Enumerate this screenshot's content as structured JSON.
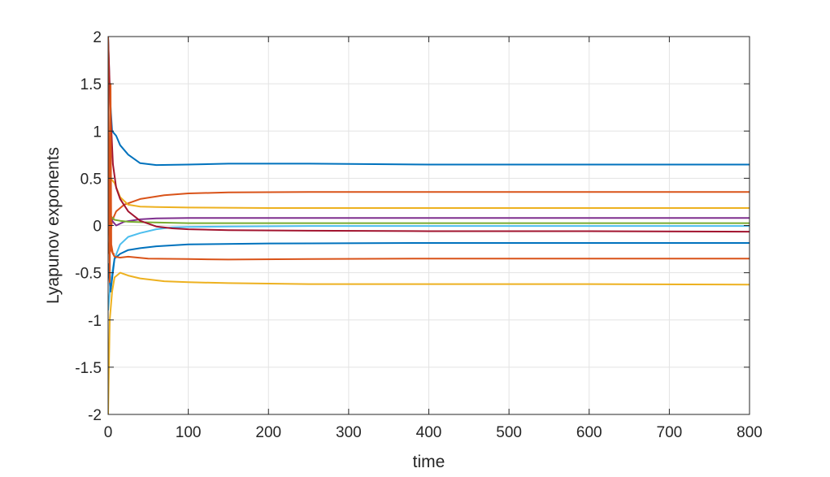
{
  "chart_data": {
    "type": "line",
    "title": "",
    "xlabel": "time",
    "ylabel": "Lyapunov exponents",
    "xlim": [
      0,
      800
    ],
    "ylim": [
      -2,
      2
    ],
    "grid": true,
    "legend": "none",
    "x_ticks": [
      0,
      100,
      200,
      300,
      400,
      500,
      600,
      700,
      800
    ],
    "y_ticks": [
      2,
      1.5,
      1,
      0.5,
      0,
      -0.5,
      -1,
      -1.5,
      -2
    ],
    "x_tick_labels": [
      "0",
      "100",
      "200",
      "300",
      "400",
      "500",
      "600",
      "700",
      "800"
    ],
    "y_tick_labels": [
      "2",
      "1.5",
      "1",
      "0.5",
      "0",
      "-0.5",
      "-1",
      "-1.5",
      "-2"
    ],
    "series": [
      {
        "color": "#0072BD",
        "x": [
          0,
          2,
          5,
          10,
          15,
          25,
          40,
          60,
          100,
          150,
          250,
          400,
          600,
          800
        ],
        "y": [
          2,
          1.4,
          1.0,
          0.95,
          0.85,
          0.75,
          0.66,
          0.64,
          0.645,
          0.655,
          0.655,
          0.645,
          0.645,
          0.645
        ]
      },
      {
        "color": "#D95319",
        "x": [
          0,
          5,
          10,
          20,
          40,
          70,
          100,
          150,
          250,
          400,
          600,
          800
        ],
        "y": [
          -0.3,
          0.05,
          0.15,
          0.22,
          0.28,
          0.32,
          0.34,
          0.35,
          0.355,
          0.355,
          0.355,
          0.355
        ]
      },
      {
        "color": "#EDB120",
        "x": [
          0,
          3,
          8,
          15,
          25,
          40,
          60,
          100,
          200,
          400,
          600,
          800
        ],
        "y": [
          0.2,
          0.5,
          0.45,
          0.3,
          0.22,
          0.2,
          0.195,
          0.19,
          0.185,
          0.185,
          0.185,
          0.185
        ]
      },
      {
        "color": "#7E2F8E",
        "x": [
          0,
          5,
          10,
          20,
          40,
          60,
          100,
          200,
          400,
          600,
          800
        ],
        "y": [
          0.2,
          0.05,
          0.0,
          0.04,
          0.065,
          0.075,
          0.08,
          0.08,
          0.08,
          0.08,
          0.08
        ]
      },
      {
        "color": "#77AC30",
        "x": [
          0,
          3,
          8,
          15,
          25,
          40,
          70,
          100,
          200,
          400,
          600,
          800
        ],
        "y": [
          -0.1,
          0.1,
          0.06,
          0.05,
          0.04,
          0.035,
          0.03,
          0.025,
          0.025,
          0.025,
          0.025,
          0.025
        ]
      },
      {
        "color": "#4DBEEE",
        "x": [
          0,
          3,
          8,
          15,
          25,
          40,
          60,
          80,
          100,
          150,
          250,
          400,
          600,
          800
        ],
        "y": [
          -0.9,
          -0.6,
          -0.35,
          -0.2,
          -0.12,
          -0.08,
          -0.04,
          -0.02,
          -0.015,
          -0.01,
          -0.005,
          -0.005,
          -0.005,
          -0.005
        ]
      },
      {
        "color": "#A2142F",
        "x": [
          0,
          3,
          6,
          10,
          15,
          25,
          40,
          60,
          80,
          100,
          150,
          250,
          400,
          600,
          800
        ],
        "y": [
          2,
          1.2,
          0.65,
          0.4,
          0.28,
          0.15,
          0.05,
          -0.01,
          -0.03,
          -0.04,
          -0.05,
          -0.055,
          -0.06,
          -0.06,
          -0.065
        ]
      },
      {
        "color": "#0072BD",
        "x": [
          0,
          3,
          8,
          15,
          25,
          40,
          60,
          100,
          200,
          400,
          600,
          800
        ],
        "y": [
          -0.4,
          -0.7,
          -0.35,
          -0.3,
          -0.26,
          -0.24,
          -0.22,
          -0.2,
          -0.19,
          -0.185,
          -0.185,
          -0.185
        ]
      },
      {
        "color": "#D95319",
        "x": [
          0,
          3,
          8,
          15,
          25,
          50,
          100,
          150,
          250,
          400,
          600,
          800
        ],
        "y": [
          0.3,
          -0.25,
          -0.33,
          -0.34,
          -0.33,
          -0.35,
          -0.355,
          -0.36,
          -0.355,
          -0.35,
          -0.35,
          -0.35
        ]
      },
      {
        "color": "#EDB120",
        "x": [
          0,
          2,
          5,
          8,
          15,
          25,
          40,
          70,
          100,
          150,
          250,
          400,
          600,
          800
        ],
        "y": [
          -2,
          -1.0,
          -0.7,
          -0.55,
          -0.5,
          -0.53,
          -0.56,
          -0.59,
          -0.6,
          -0.61,
          -0.62,
          -0.62,
          -0.62,
          -0.625
        ]
      },
      {
        "color": "#D95319",
        "x": [
          0,
          1,
          2,
          3,
          4,
          6,
          8
        ],
        "y": [
          2,
          0.5,
          -0.6,
          1.5,
          -0.2,
          -0.3,
          -0.3
        ]
      }
    ]
  }
}
